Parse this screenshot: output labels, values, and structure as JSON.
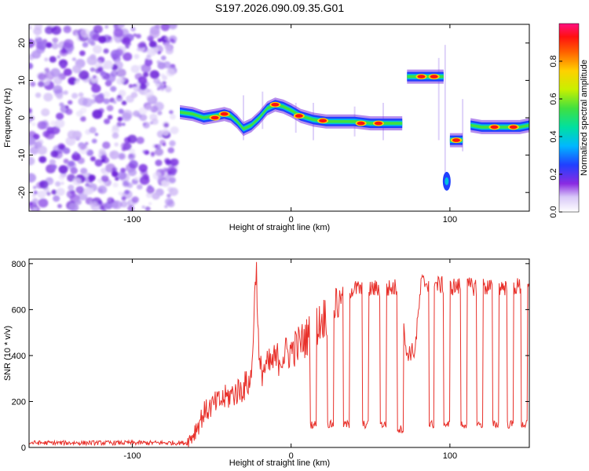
{
  "chart_data": [
    {
      "type": "heatmap",
      "title": "S197.2026.090.09.35.G01",
      "xlabel": "Height of straight line (km)",
      "ylabel": "Frequency (Hz)",
      "xlim": [
        -165,
        150
      ],
      "ylim": [
        -25,
        25
      ],
      "xticks": [
        -100,
        0,
        100
      ],
      "yticks": [
        -20,
        -10,
        0,
        10,
        20
      ],
      "colorbar": {
        "label": "Normalized spectral amplitude",
        "range": [
          0.0,
          1.0
        ],
        "ticks": [
          "0.0",
          "0.2",
          "0.4",
          "0.6",
          "0.8"
        ]
      },
      "noise_region_x": [
        -165,
        -73
      ],
      "ridge": [
        {
          "x": -70,
          "f": 1.5
        },
        {
          "x": -62,
          "f": 1.0
        },
        {
          "x": -55,
          "f": 0.0
        },
        {
          "x": -48,
          "f": 0.5
        },
        {
          "x": -42,
          "f": 1.0
        },
        {
          "x": -38,
          "f": 0.5
        },
        {
          "x": -34,
          "f": -1.0
        },
        {
          "x": -30,
          "f": -3.0
        },
        {
          "x": -25,
          "f": -2.0
        },
        {
          "x": -20,
          "f": 0.0
        },
        {
          "x": -15,
          "f": 2.5
        },
        {
          "x": -10,
          "f": 3.5
        },
        {
          "x": -5,
          "f": 3.0
        },
        {
          "x": 0,
          "f": 2.0
        },
        {
          "x": 6,
          "f": 0.5
        },
        {
          "x": 14,
          "f": -0.5
        },
        {
          "x": 22,
          "f": -1.0
        },
        {
          "x": 30,
          "f": -1.0
        },
        {
          "x": 40,
          "f": -1.0
        },
        {
          "x": 50,
          "f": -1.5
        },
        {
          "x": 60,
          "f": -1.5
        },
        {
          "x": 70,
          "f": -1.5
        }
      ],
      "upper_segment": {
        "x": [
          73,
          96
        ],
        "f": 11
      },
      "low_blob": {
        "x": 98,
        "f": -17
      },
      "dip_segment": {
        "x": [
          100,
          108
        ],
        "f": -6
      },
      "tail": [
        {
          "x": 113,
          "f": -2
        },
        {
          "x": 120,
          "f": -2.5
        },
        {
          "x": 128,
          "f": -2.5
        },
        {
          "x": 136,
          "f": -2.5
        },
        {
          "x": 144,
          "f": -2.5
        },
        {
          "x": 150,
          "f": -2.0
        }
      ],
      "bright_peaks": [
        {
          "x": -48,
          "f": 0.0
        },
        {
          "x": -42,
          "f": 1.0
        },
        {
          "x": -10,
          "f": 3.5
        },
        {
          "x": 5,
          "f": 0.5
        },
        {
          "x": 20,
          "f": -0.8
        },
        {
          "x": 44,
          "f": -1.5
        },
        {
          "x": 55,
          "f": -1.5
        },
        {
          "x": 82,
          "f": 11
        },
        {
          "x": 90,
          "f": 11
        },
        {
          "x": 104,
          "f": -6
        },
        {
          "x": 128,
          "f": -2.5
        },
        {
          "x": 140,
          "f": -2.5
        }
      ]
    },
    {
      "type": "line",
      "xlabel": "Height of straight line (km)",
      "ylabel": "SNR (10 * v/v)",
      "xlim": [
        -165,
        150
      ],
      "ylim": [
        0,
        820
      ],
      "xticks": [
        -100,
        0,
        100
      ],
      "yticks": [
        0,
        200,
        400,
        600,
        800
      ],
      "series": [
        {
          "name": "SNR",
          "color": "#e8302a",
          "points": [
            [
              -165,
              20
            ],
            [
              -140,
              20
            ],
            [
              -100,
              20
            ],
            [
              -80,
              20
            ],
            [
              -65,
              20
            ],
            [
              -60,
              80
            ],
            [
              -55,
              150
            ],
            [
              -50,
              180
            ],
            [
              -45,
              200
            ],
            [
              -40,
              220
            ],
            [
              -35,
              240
            ],
            [
              -30,
              260
            ],
            [
              -25,
              300
            ],
            [
              -22,
              810
            ],
            [
              -20,
              330
            ],
            [
              -15,
              350
            ],
            [
              -10,
              380
            ],
            [
              -5,
              400
            ],
            [
              0,
              420
            ],
            [
              5,
              450
            ],
            [
              10,
              480
            ],
            [
              15,
              520
            ],
            [
              20,
              560
            ],
            [
              25,
              600
            ],
            [
              30,
              640
            ],
            [
              35,
              680
            ],
            [
              40,
              690
            ],
            [
              50,
              690
            ],
            [
              60,
              690
            ],
            [
              70,
              700
            ],
            [
              72,
              410
            ],
            [
              78,
              420
            ],
            [
              82,
              720
            ],
            [
              100,
              700
            ],
            [
              120,
              700
            ],
            [
              150,
              700
            ]
          ],
          "dropouts": [
            {
              "x": [
                12,
                16
              ],
              "level": 100
            },
            {
              "x": [
                23,
                27
              ],
              "level": 100
            },
            {
              "x": [
                33,
                37
              ],
              "level": 100
            },
            {
              "x": [
                45,
                49
              ],
              "level": 100
            },
            {
              "x": [
                56,
                60
              ],
              "level": 100
            },
            {
              "x": [
                67,
                71
              ],
              "level": 80
            },
            {
              "x": [
                87,
                90
              ],
              "level": 100
            },
            {
              "x": [
                96,
                100
              ],
              "level": 100
            },
            {
              "x": [
                107,
                111
              ],
              "level": 100
            },
            {
              "x": [
                117,
                121
              ],
              "level": 100
            },
            {
              "x": [
                127,
                131
              ],
              "level": 100
            },
            {
              "x": [
                136,
                140
              ],
              "level": 100
            },
            {
              "x": [
                145,
                149
              ],
              "level": 100
            }
          ]
        }
      ]
    }
  ]
}
